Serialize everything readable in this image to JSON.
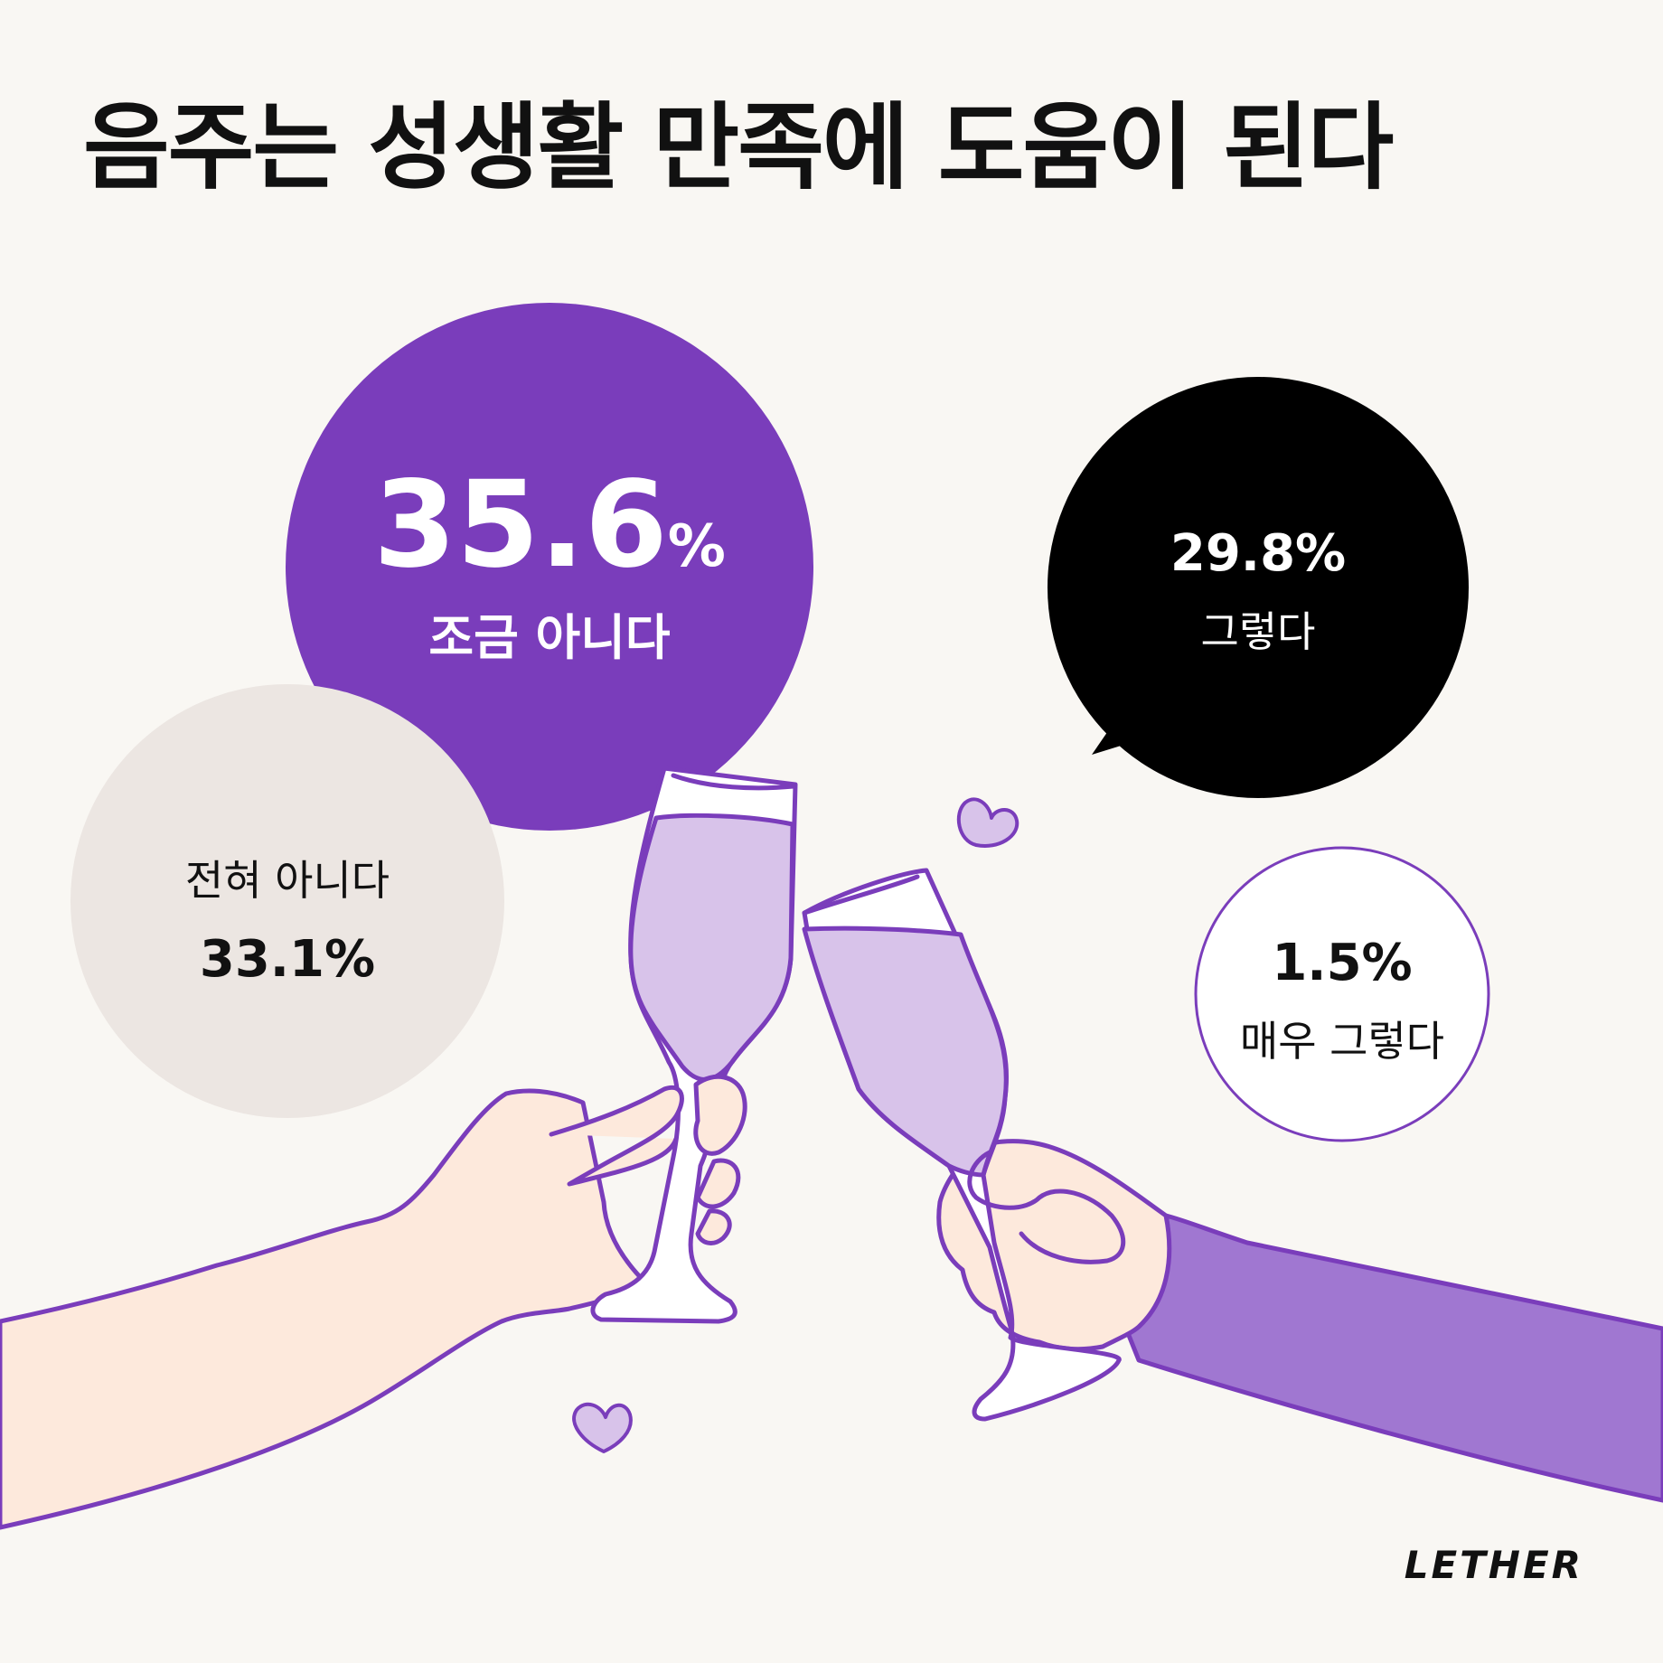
{
  "title": "음주는 성생활 만족에 도움이 된다",
  "logo": "LETHER",
  "colors": {
    "background": "#f9f7f3",
    "purple": "#7a3dbb",
    "black": "#000000",
    "gray": "#ece6e2",
    "light_purple": "#d8c3ea",
    "sleeve": "#a077d1",
    "skin": "#fde9dc"
  },
  "chart_data": {
    "type": "bubble",
    "title": "음주는 성생활 만족에 도움이 된다",
    "unit": "%",
    "categories": [
      "조금 아니다",
      "전혀 아니다",
      "그렇다",
      "매우 그렇다"
    ],
    "values": [
      35.6,
      33.1,
      29.8,
      1.5
    ],
    "labels": [
      "35.6%",
      "33.1%",
      "29.8%",
      "1.5%"
    ]
  },
  "icons": [
    "champagne-glass-icon",
    "heart-icon",
    "hand-icon"
  ]
}
